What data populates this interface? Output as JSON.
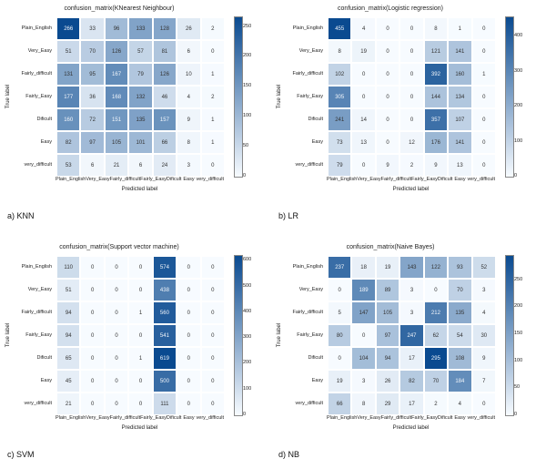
{
  "labels": {
    "rows": [
      "Plain_English",
      "Very_Easy",
      "Fairly_difficult",
      "Fairly_Easy",
      "Dificult",
      "Easy",
      "very_difficult"
    ],
    "cols": [
      "Plain_English",
      "Very_Easy",
      "Fairly_difficult",
      "Fairly_Easy",
      "Dificult",
      "Easy",
      "very_difficult"
    ],
    "xaxis": "Predicted label",
    "yaxis": "True label"
  },
  "color_scale": {
    "low": "#f7fbff",
    "high": "#0a4a90",
    "text_dark": "#333333",
    "text_light": "#f2f6fb",
    "text_switch": 0.55
  },
  "panels": [
    {
      "key": "knn",
      "pos": "tl",
      "title": "confusion_matrix(KNearest Neighbour)",
      "caption": "a) KNN",
      "vmax": 266,
      "cbar_ticks": [
        0,
        50,
        100,
        150,
        200,
        250
      ],
      "matrix": [
        [
          266,
          33,
          96,
          133,
          128,
          26,
          2
        ],
        [
          51,
          70,
          126,
          57,
          81,
          6,
          0
        ],
        [
          131,
          95,
          167,
          79,
          126,
          10,
          1
        ],
        [
          177,
          36,
          168,
          132,
          46,
          4,
          2
        ],
        [
          160,
          72,
          151,
          135,
          157,
          9,
          1
        ],
        [
          82,
          97,
          105,
          101,
          66,
          8,
          1
        ],
        [
          53,
          6,
          21,
          6,
          24,
          3,
          0
        ]
      ]
    },
    {
      "key": "lr",
      "pos": "tr",
      "title": "confusion_matrix(Logistic regression)",
      "caption": "b) LR",
      "vmax": 455,
      "cbar_ticks": [
        0,
        100,
        200,
        300,
        400
      ],
      "matrix": [
        [
          455,
          4,
          0,
          0,
          8,
          1,
          0
        ],
        [
          8,
          19,
          0,
          0,
          121,
          141,
          0
        ],
        [
          102,
          0,
          0,
          0,
          392,
          160,
          1
        ],
        [
          305,
          0,
          0,
          0,
          144,
          134,
          0
        ],
        [
          241,
          14,
          0,
          0,
          357,
          107,
          0
        ],
        [
          73,
          13,
          0,
          12,
          176,
          141,
          0
        ],
        [
          79,
          0,
          9,
          2,
          9,
          13,
          0
        ]
      ]
    },
    {
      "key": "svm",
      "pos": "bl",
      "title": "confusion_matrix(Support vector machine)",
      "caption": "c) SVM",
      "vmax": 619,
      "cbar_ticks": [
        0,
        100,
        200,
        300,
        400,
        500,
        600
      ],
      "matrix": [
        [
          110,
          0,
          0,
          0,
          574,
          0,
          0
        ],
        [
          51,
          0,
          0,
          0,
          438,
          0,
          0
        ],
        [
          94,
          0,
          0,
          1,
          560,
          0,
          0
        ],
        [
          94,
          0,
          0,
          0,
          541,
          0,
          0
        ],
        [
          65,
          0,
          0,
          1,
          619,
          0,
          0
        ],
        [
          45,
          0,
          0,
          0,
          500,
          0,
          0
        ],
        [
          21,
          0,
          0,
          0,
          111,
          0,
          0
        ]
      ]
    },
    {
      "key": "nb",
      "pos": "br",
      "title": "confusion_matrix(Naive Bayes)",
      "caption": "d) NB",
      "vmax": 295,
      "cbar_ticks": [
        0,
        50,
        100,
        150,
        200,
        250
      ],
      "matrix": [
        [
          237,
          18,
          19,
          143,
          122,
          93,
          52
        ],
        [
          0,
          189,
          89,
          3,
          0,
          70,
          3
        ],
        [
          5,
          147,
          105,
          3,
          212,
          135,
          4
        ],
        [
          80,
          0,
          97,
          247,
          62,
          54,
          30
        ],
        [
          0,
          104,
          94,
          17,
          295,
          108,
          9
        ],
        [
          19,
          3,
          26,
          82,
          70,
          184,
          7
        ],
        [
          66,
          8,
          29,
          17,
          2,
          4,
          0
        ]
      ]
    }
  ]
}
